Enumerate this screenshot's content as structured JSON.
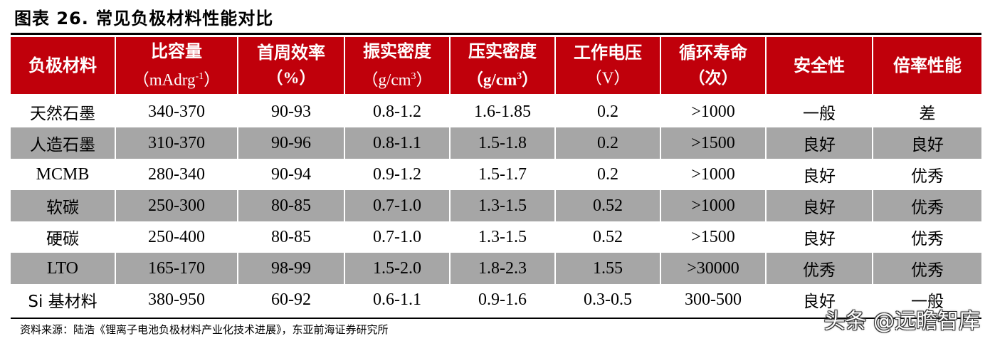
{
  "title": "图表 26. 常见负极材料性能对比",
  "header": {
    "col1": "负极材料",
    "col2": "比容量",
    "col2_unit_pre": "（mAdrg",
    "col2_unit_sup": "-1",
    "col2_unit_post": "）",
    "col3": "首周效率",
    "col3_unit": "（%）",
    "col4": "振实密度",
    "col4_unit_pre": "（g/cm",
    "col4_unit_sup": "3",
    "col4_unit_post": "）",
    "col5": "压实密度",
    "col5_unit_pre": "（g/cm",
    "col5_unit_sup": "3",
    "col5_unit_post": "）",
    "col6": "工作电压",
    "col6_unit": "（V）",
    "col7": "循环寿命",
    "col7_unit": "（次）",
    "col8": "安全性",
    "col9": "倍率性能"
  },
  "rows": [
    [
      "天然石墨",
      "340-370",
      "90-93",
      "0.8-1.2",
      "1.6-1.85",
      "0.2",
      ">1000",
      "一般",
      "差"
    ],
    [
      "人造石墨",
      "310-370",
      "90-96",
      "0.8-1.1",
      "1.5-1.8",
      "0.2",
      ">1500",
      "良好",
      "良好"
    ],
    [
      "MCMB",
      "280-340",
      "90-94",
      "0.9-1.2",
      "1.5-1.7",
      "0.2",
      ">1000",
      "良好",
      "优秀"
    ],
    [
      "软碳",
      "250-300",
      "80-85",
      "0.7-1.0",
      "1.3-1.5",
      "0.52",
      ">1000",
      "良好",
      "优秀"
    ],
    [
      "硬碳",
      "250-400",
      "80-85",
      "0.7-1.0",
      "1.3-1.5",
      "0.52",
      ">1500",
      "良好",
      "优秀"
    ],
    [
      "LTO",
      "165-170",
      "98-99",
      "1.5-2.0",
      "1.8-2.3",
      "1.55",
      ">30000",
      "优秀",
      "优秀"
    ],
    [
      "Si 基材料",
      "380-950",
      "60-92",
      "0.6-1.1",
      "0.9-1.6",
      "0.3-0.5",
      "300-500",
      "良好",
      "一般"
    ]
  ],
  "source": "资料来源：陆浩《锂离子电池负极材料产业化技术进展》，东亚前海证券研究所",
  "watermark": "头条 @远瞻智库",
  "colors": {
    "header_bg": "#c0000b",
    "shade_bg": "#a6a6a6"
  }
}
